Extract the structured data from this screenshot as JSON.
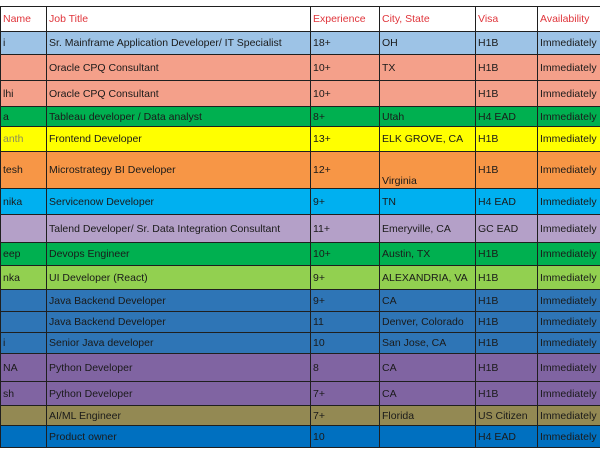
{
  "columns": [
    "Name",
    "Job Title",
    "Experience",
    "City, State",
    "Visa",
    "Availability"
  ],
  "rows": [
    {
      "name": "i",
      "title": "Sr. Mainframe Application Developer/ IT Specialist",
      "experience": "18+",
      "city": "OH",
      "visa": "H1B",
      "availability": "Immediately"
    },
    {
      "name": "",
      "title": "Oracle CPQ Consultant",
      "experience": "10+",
      "city": " TX",
      "visa": "H1B",
      "availability": "Immediately"
    },
    {
      "name": "lhi",
      "title": "Oracle CPQ Consultant",
      "experience": "10+",
      "city": "",
      "visa": "H1B",
      "availability": "Immediately"
    },
    {
      "name": "a",
      "title": "Tableau developer / Data analyst",
      "experience": "8+",
      "city": "Utah",
      "visa": "H4 EAD",
      "availability": "Immediately"
    },
    {
      "name": "anth",
      "title": "Frontend Developer",
      "experience": "13+",
      "city": "ELK GROVE, CA",
      "visa": "H1B",
      "availability": "Immediately"
    },
    {
      "name": "tesh",
      "title": "Microstrategy BI Developer",
      "experience": "12+",
      "city": "Virginia",
      "visa": "H1B",
      "availability": "Immediately"
    },
    {
      "name": "nika",
      "title": "Servicenow Developer",
      "experience": "9+",
      "city": "TN",
      "visa": "H4 EAD",
      "availability": "Immediately"
    },
    {
      "name": "",
      "title": "Talend Developer/ Sr. Data Integration Consultant",
      "experience": "11+",
      "city": "Emeryville, CA",
      "visa": "GC EAD",
      "availability": "Immediately"
    },
    {
      "name": "eep",
      "title": "Devops Engineer",
      "experience": "10+",
      "city": "Austin, TX",
      "visa": "H1B",
      "availability": "Immediately"
    },
    {
      "name": "nka",
      "title": "UI Developer (React)",
      "experience": "9+",
      "city": " ALEXANDRIA, VA",
      "visa": "H1B",
      "availability": "Immediately"
    },
    {
      "name": "",
      "title": "Java Backend Developer",
      "experience": "9+",
      "city": "CA",
      "visa": "H1B",
      "availability": "Immediately"
    },
    {
      "name": "",
      "title": "Java Backend Developer",
      "experience": "11",
      "city": "Denver, Colorado",
      "visa": "H1B",
      "availability": "Immediately"
    },
    {
      "name": "i",
      "title": "Senior Java developer",
      "experience": "10",
      "city": "San Jose, CA",
      "visa": "H1B",
      "availability": "Immediately"
    },
    {
      "name": "NA",
      "title": "Python Developer",
      "experience": "8",
      "city": "CA",
      "visa": "H1B",
      "availability": "Immediately"
    },
    {
      "name": "sh",
      "title": "Python Developer",
      "experience": "7+",
      "city": "CA",
      "visa": "H1B",
      "availability": "Immediately"
    },
    {
      "name": "",
      "title": "AI/ML Engineer",
      "experience": "7+",
      "city": "Florida",
      "visa": "US Citizen",
      "availability": "Immediately"
    },
    {
      "name": "",
      "title": "Product owner",
      "experience": "10",
      "city": "",
      "visa": "H4 EAD",
      "availability": "Immediately"
    }
  ],
  "colors": {
    "header_text": "#e0353b",
    "blue": "#9dc3e6",
    "salmon": "#f4a08a",
    "green": "#00b050",
    "yellow": "#ffff00",
    "orange": "#f79646",
    "sky": "#00b0f0",
    "lavender": "#b4a0c8",
    "lime": "#92d050",
    "steel": "#2e75b6",
    "purple": "#8064a2",
    "olive": "#938953",
    "azure": "#0070c0"
  }
}
